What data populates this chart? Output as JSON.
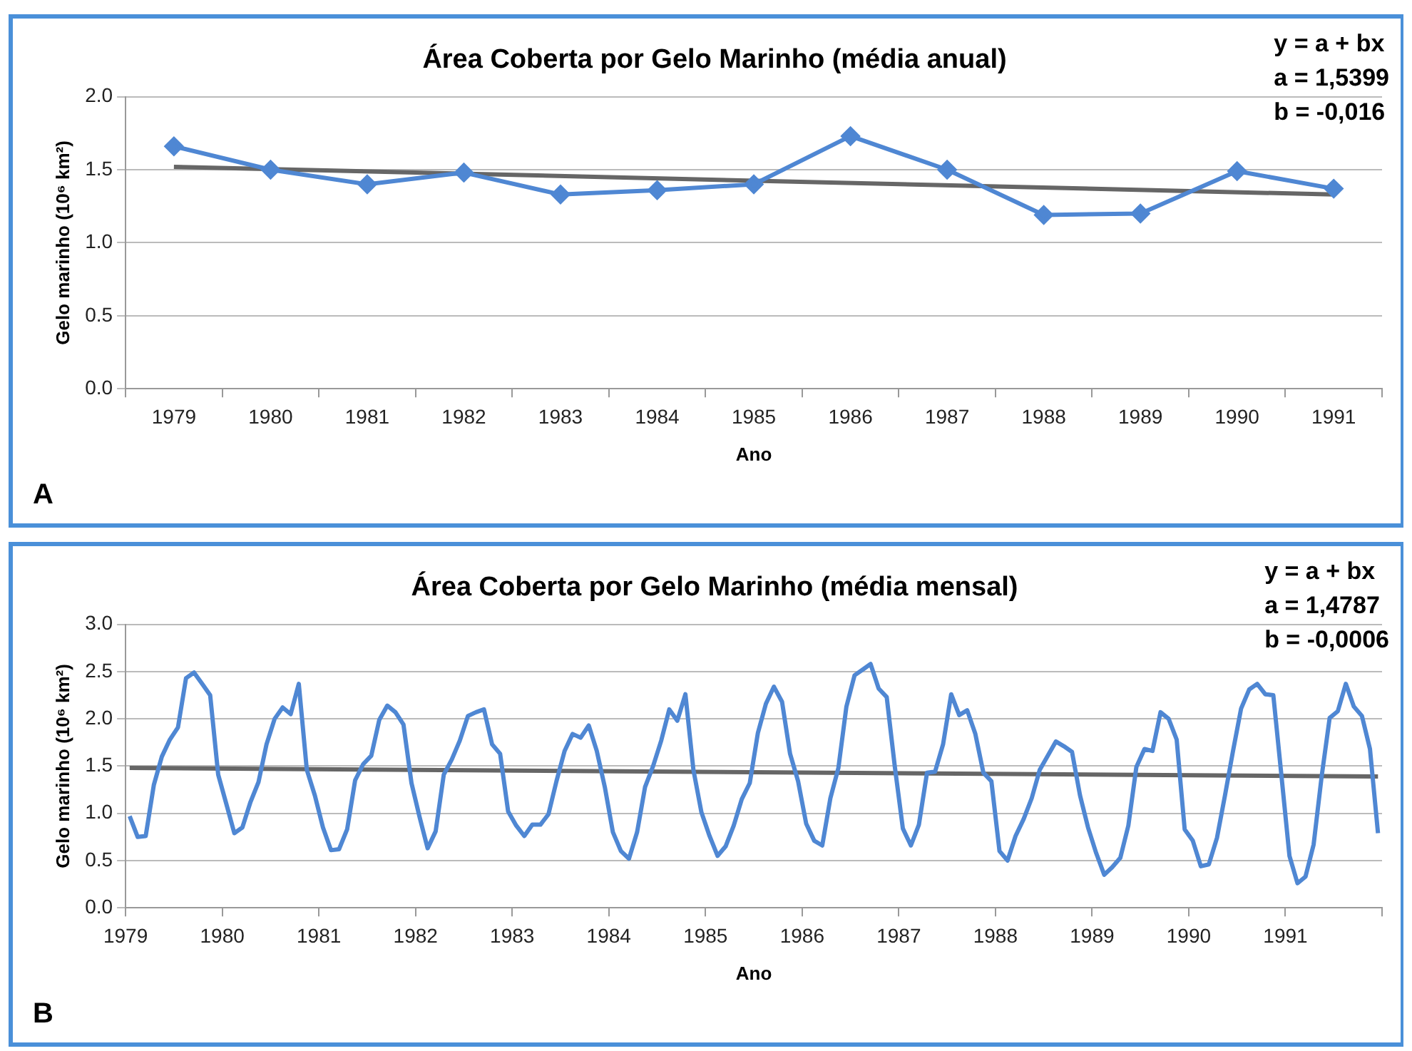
{
  "chart_data": [
    {
      "type": "line",
      "title": "Área Coberta por Gelo Marinho (média anual)",
      "xlabel": "Ano",
      "ylabel": "Gelo marinho (10⁶ km²)",
      "categories": [
        "1979",
        "1980",
        "1981",
        "1982",
        "1983",
        "1984",
        "1985",
        "1986",
        "1987",
        "1988",
        "1989",
        "1990",
        "1991"
      ],
      "series": [
        {
          "color": "#4f87d3",
          "values": [
            1.66,
            1.5,
            1.4,
            1.48,
            1.33,
            1.36,
            1.4,
            1.73,
            1.5,
            1.19,
            1.2,
            1.49,
            1.37
          ]
        },
        {
          "type": "line",
          "color": "#666666",
          "marker": "none",
          "values": [
            1.52,
            null,
            null,
            null,
            null,
            null,
            null,
            null,
            null,
            null,
            null,
            null,
            1.33
          ]
        }
      ],
      "ylim": [
        0,
        2
      ],
      "yticks": [
        {
          "value": 0,
          "label": "0.0"
        },
        {
          "value": 0.5,
          "label": "0.5"
        },
        {
          "value": 1,
          "label": "1.0"
        },
        {
          "value": 1.5,
          "label": "1.5"
        },
        {
          "value": 2,
          "label": "2.0"
        }
      ],
      "grid": "y",
      "legend": false,
      "marker": "diamond",
      "annotations": [
        "y = a + bx",
        "a = 1,5399",
        "b = -0,016",
        "A"
      ]
    },
    {
      "type": "line",
      "title": "Área Coberta por Gelo Marinho (média mensal)",
      "xlabel": "Ano",
      "ylabel": "Gelo marinho (10⁶ km²)",
      "x": [
        1979.042,
        1979.125,
        1979.208,
        1979.292,
        1979.375,
        1979.458,
        1979.542,
        1979.625,
        1979.708,
        1979.792,
        1979.875,
        1979.958,
        1980.042,
        1980.125,
        1980.208,
        1980.292,
        1980.375,
        1980.458,
        1980.542,
        1980.625,
        1980.708,
        1980.792,
        1980.875,
        1980.958,
        1981.042,
        1981.125,
        1981.208,
        1981.292,
        1981.375,
        1981.458,
        1981.542,
        1981.625,
        1981.708,
        1981.792,
        1981.875,
        1981.958,
        1982.042,
        1982.125,
        1982.208,
        1982.292,
        1982.375,
        1982.458,
        1982.542,
        1982.625,
        1982.708,
        1982.792,
        1982.875,
        1982.958,
        1983.042,
        1983.125,
        1983.208,
        1983.292,
        1983.375,
        1983.458,
        1983.542,
        1983.625,
        1983.708,
        1983.792,
        1983.875,
        1983.958,
        1984.042,
        1984.125,
        1984.208,
        1984.292,
        1984.375,
        1984.458,
        1984.542,
        1984.625,
        1984.708,
        1984.792,
        1984.875,
        1984.958,
        1985.042,
        1985.125,
        1985.208,
        1985.292,
        1985.375,
        1985.458,
        1985.542,
        1985.625,
        1985.708,
        1985.792,
        1985.875,
        1985.958,
        1986.042,
        1986.125,
        1986.208,
        1986.292,
        1986.375,
        1986.458,
        1986.542,
        1986.625,
        1986.708,
        1986.792,
        1986.875,
        1986.958,
        1987.042,
        1987.125,
        1987.208,
        1987.292,
        1987.375,
        1987.458,
        1987.542,
        1987.625,
        1987.708,
        1987.792,
        1987.875,
        1987.958,
        1988.042,
        1988.125,
        1988.208,
        1988.292,
        1988.375,
        1988.458,
        1988.542,
        1988.625,
        1988.708,
        1988.792,
        1988.875,
        1988.958,
        1989.042,
        1989.125,
        1989.208,
        1989.292,
        1989.375,
        1989.458,
        1989.542,
        1989.625,
        1989.708,
        1989.792,
        1989.875,
        1989.958,
        1990.042,
        1990.125,
        1990.208,
        1990.292,
        1990.375,
        1990.458,
        1990.542,
        1990.625,
        1990.708,
        1990.792,
        1990.875,
        1990.958,
        1991.042,
        1991.125,
        1991.208,
        1991.292,
        1991.375,
        1991.458,
        1991.542,
        1991.625,
        1991.708,
        1991.792,
        1991.875,
        1991.958
      ],
      "series": [
        {
          "color": "#4f87d3",
          "values": [
            0.97,
            0.75,
            0.76,
            1.3,
            1.6,
            1.78,
            1.91,
            2.43,
            2.49,
            2.37,
            2.25,
            1.41,
            1.1,
            0.79,
            0.85,
            1.12,
            1.33,
            1.73,
            2.0,
            2.12,
            2.05,
            2.37,
            1.46,
            1.19,
            0.85,
            0.61,
            0.62,
            0.83,
            1.35,
            1.52,
            1.61,
            1.99,
            2.14,
            2.07,
            1.94,
            1.32,
            0.96,
            0.63,
            0.81,
            1.41,
            1.57,
            1.77,
            2.03,
            2.07,
            2.1,
            1.73,
            1.63,
            1.02,
            0.87,
            0.76,
            0.88,
            0.88,
            0.99,
            1.34,
            1.66,
            1.84,
            1.8,
            1.93,
            1.66,
            1.28,
            0.8,
            0.6,
            0.52,
            0.8,
            1.28,
            1.5,
            1.77,
            2.1,
            1.98,
            2.26,
            1.46,
            1.01,
            0.76,
            0.55,
            0.65,
            0.87,
            1.15,
            1.32,
            1.85,
            2.16,
            2.34,
            2.18,
            1.63,
            1.34,
            0.89,
            0.71,
            0.66,
            1.16,
            1.48,
            2.13,
            2.46,
            2.52,
            2.58,
            2.32,
            2.23,
            1.5,
            0.84,
            0.66,
            0.88,
            1.43,
            1.44,
            1.73,
            2.26,
            2.04,
            2.09,
            1.84,
            1.43,
            1.34,
            0.6,
            0.5,
            0.76,
            0.94,
            1.16,
            1.46,
            1.61,
            1.76,
            1.71,
            1.65,
            1.19,
            0.85,
            0.58,
            0.35,
            0.43,
            0.53,
            0.87,
            1.49,
            1.68,
            1.66,
            2.07,
            2.0,
            1.78,
            0.83,
            0.71,
            0.44,
            0.46,
            0.74,
            1.19,
            1.66,
            2.11,
            2.31,
            2.37,
            2.26,
            2.25,
            1.41,
            0.55,
            0.26,
            0.33,
            0.67,
            1.39,
            2.01,
            2.08,
            2.37,
            2.13,
            2.03,
            1.68,
            0.79
          ]
        },
        {
          "type": "line",
          "color": "#666666",
          "x": [
            1979.042,
            1991.958
          ],
          "values": [
            1.48,
            1.39
          ]
        }
      ],
      "xlim": [
        1979,
        1992
      ],
      "xticks": [
        1979,
        1980,
        1981,
        1982,
        1983,
        1984,
        1985,
        1986,
        1987,
        1988,
        1989,
        1990,
        1991,
        {
          "value": 1992,
          "label": null
        }
      ],
      "ylim": [
        0,
        3
      ],
      "yticks": [
        {
          "value": 0,
          "label": "0.0"
        },
        {
          "value": 0.5,
          "label": "0.5"
        },
        {
          "value": 1,
          "label": "1.0"
        },
        {
          "value": 1.5,
          "label": "1.5"
        },
        {
          "value": 2,
          "label": "2.0"
        },
        {
          "value": 2.5,
          "label": "2.5"
        },
        {
          "value": 3,
          "label": "3.0"
        }
      ],
      "grid": "y",
      "legend": false,
      "annotations": [
        "y = a + bx",
        "a = 1,4787",
        "b = -0,0006",
        "B"
      ]
    }
  ]
}
